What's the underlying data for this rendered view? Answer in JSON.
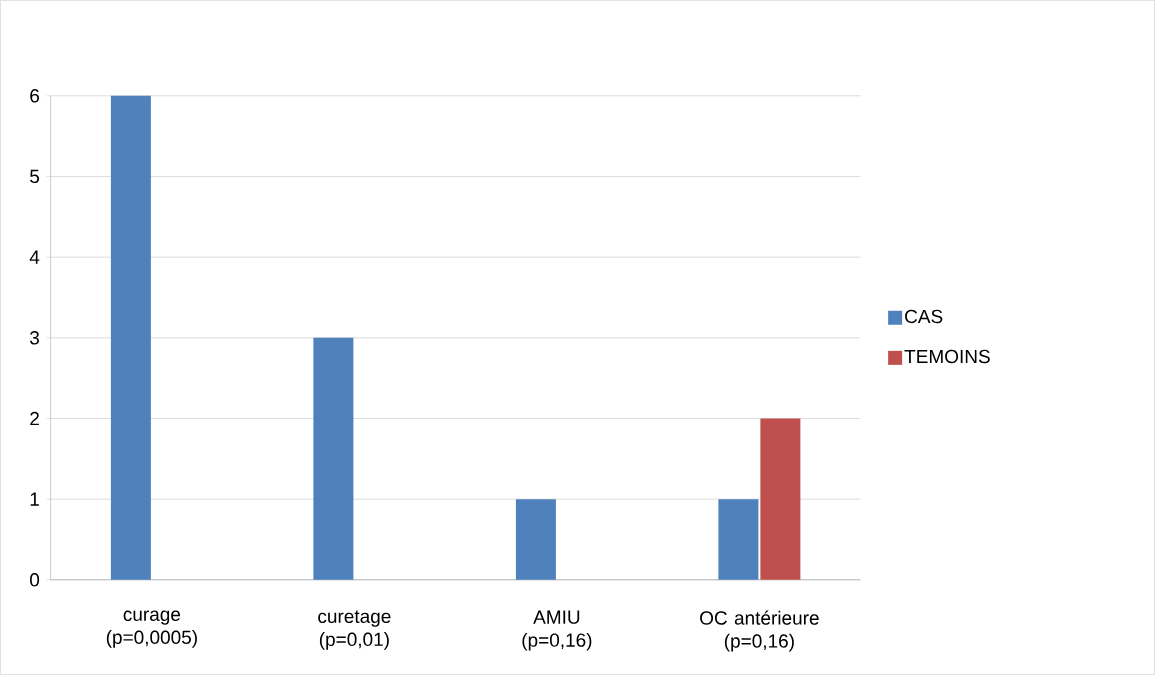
{
  "chart_data": {
    "type": "bar",
    "categories": [
      "curage (p=0,0005)",
      "curetage (p=0,01)",
      "AMIU (p=0,16)",
      "OC antérieure (p=0,16)"
    ],
    "series": [
      {
        "name": "CAS",
        "color": "#4f81bd",
        "values": [
          6,
          3,
          1,
          1
        ]
      },
      {
        "name": "TEMOINS",
        "color": "#c0504d",
        "values": [
          0,
          0,
          0,
          2
        ]
      }
    ],
    "ylim": [
      0,
      6
    ],
    "yticks": [
      0,
      1,
      2,
      3,
      4,
      5,
      6
    ],
    "grid": "y",
    "legend": "right"
  }
}
